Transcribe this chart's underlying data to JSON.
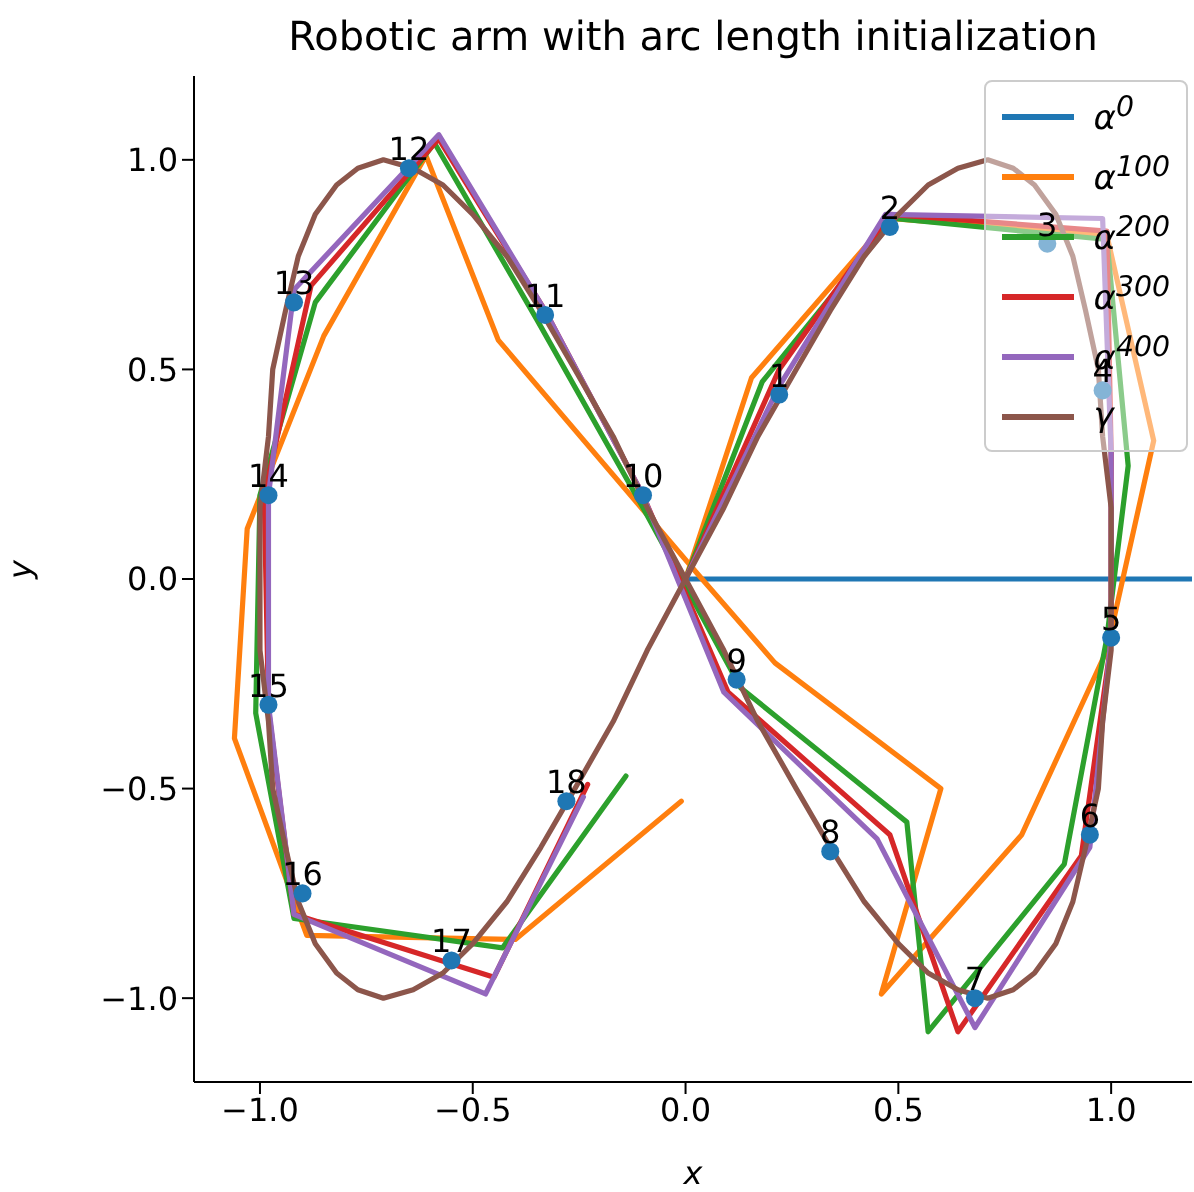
{
  "chart_data": {
    "type": "line",
    "title": "Robotic arm with arc length initialization",
    "xlabel": "x",
    "ylabel": "y",
    "xlim": [
      -1.155,
      1.19
    ],
    "ylim": [
      -1.2,
      1.2
    ],
    "xticks": [
      {
        "value": -1,
        "label": "−1.0"
      },
      {
        "value": -0.5,
        "label": "−0.5"
      },
      {
        "value": 0,
        "label": "0.0"
      },
      {
        "value": 0.5,
        "label": "0.5"
      },
      {
        "value": 1,
        "label": "1.0"
      }
    ],
    "yticks": [
      {
        "value": -1,
        "label": "−1.0"
      },
      {
        "value": -0.5,
        "label": "−0.5"
      },
      {
        "value": 0,
        "label": "0.0"
      },
      {
        "value": 0.5,
        "label": "0.5"
      },
      {
        "value": 1,
        "label": "1.0"
      }
    ],
    "grid": false,
    "legend": "top right",
    "series": [
      {
        "name": "α$^{0}$",
        "color": "#1f77b4",
        "x": [
          0,
          1.19
        ],
        "values": [
          0,
          0
        ]
      },
      {
        "name": "α$^{100}$",
        "color": "#ff7f0e",
        "x": [
          0,
          0.155,
          0.48,
          0.99,
          1.1,
          0.99,
          0.79,
          0.46,
          0.6,
          0.21,
          0.03,
          -0.44,
          -0.61,
          -0.85,
          -1.03,
          -1.06,
          -0.89,
          -0.4,
          -0.01
        ],
        "values": [
          0,
          0.48,
          0.86,
          0.82,
          0.33,
          -0.17,
          -0.61,
          -0.99,
          -0.5,
          -0.2,
          0.01,
          0.57,
          1.01,
          0.58,
          0.12,
          -0.38,
          -0.85,
          -0.86,
          -0.53
        ]
      },
      {
        "name": "α$^{200}$",
        "color": "#2ca02c",
        "x": [
          0,
          0.18,
          0.49,
          0.99,
          1.04,
          0.99,
          0.89,
          0.57,
          0.52,
          0.13,
          -0.1,
          -0.35,
          -0.59,
          -0.87,
          -1.0,
          -1.01,
          -0.92,
          -0.43,
          -0.14
        ],
        "values": [
          0,
          0.47,
          0.86,
          0.81,
          0.27,
          -0.14,
          -0.68,
          -1.08,
          -0.58,
          -0.26,
          0.17,
          0.62,
          1.04,
          0.66,
          0.2,
          -0.32,
          -0.81,
          -0.88,
          -0.47
        ]
      },
      {
        "name": "α$^{300}$",
        "color": "#d62728",
        "x": [
          0,
          0.22,
          0.48,
          0.99,
          1.0,
          1.0,
          0.93,
          0.64,
          0.48,
          0.1,
          -0.1,
          -0.33,
          -0.58,
          -0.88,
          -0.99,
          -0.98,
          -0.92,
          -0.45,
          -0.23
        ],
        "values": [
          0,
          0.5,
          0.87,
          0.83,
          0.3,
          -0.15,
          -0.66,
          -1.08,
          -0.61,
          -0.27,
          0.2,
          0.64,
          1.05,
          0.7,
          0.2,
          -0.31,
          -0.8,
          -0.95,
          -0.49
        ]
      },
      {
        "name": "α$^{400}$",
        "color": "#9467bd",
        "x": [
          0,
          0.22,
          0.47,
          0.98,
          1.0,
          1.0,
          0.95,
          0.68,
          0.45,
          0.09,
          -0.1,
          -0.33,
          -0.58,
          -0.92,
          -0.98,
          -0.98,
          -0.92,
          -0.47,
          -0.24
        ],
        "values": [
          0,
          0.46,
          0.87,
          0.86,
          0.3,
          -0.14,
          -0.64,
          -1.07,
          -0.62,
          -0.27,
          0.2,
          0.64,
          1.06,
          0.69,
          0.2,
          -0.3,
          -0.8,
          -0.99,
          -0.52
        ]
      },
      {
        "name": "γ",
        "color": "#8c564b",
        "x": [
          -0.09,
          0,
          0.09,
          0.17,
          0.26,
          0.34,
          0.42,
          0.5,
          0.57,
          0.64,
          0.71,
          0.77,
          0.82,
          0.87,
          0.91,
          0.94,
          0.97,
          0.98,
          1,
          1,
          1,
          0.98,
          0.97,
          0.94,
          0.91,
          0.87,
          0.82,
          0.77,
          0.71,
          0.64,
          0.57,
          0.5,
          0.42,
          0.34,
          0.26,
          0.17,
          0.09,
          0,
          -0.09,
          -0.17,
          -0.26,
          -0.34,
          -0.42,
          -0.5,
          -0.57,
          -0.64,
          -0.71,
          -0.77,
          -0.82,
          -0.87,
          -0.91,
          -0.94,
          -0.97,
          -0.98,
          -1,
          -1,
          -1,
          -0.98,
          -0.97,
          -0.94,
          -0.91,
          -0.87,
          -0.82,
          -0.77,
          -0.71,
          -0.64,
          -0.57,
          -0.5,
          -0.42,
          -0.34,
          -0.26,
          -0.17,
          -0.09,
          0
        ],
        "values": [
          -0.17,
          0,
          0.17,
          0.34,
          0.5,
          0.64,
          0.77,
          0.87,
          0.94,
          0.98,
          1,
          0.98,
          0.94,
          0.87,
          0.77,
          0.64,
          0.5,
          0.34,
          0.17,
          0,
          -0.17,
          -0.34,
          -0.5,
          -0.64,
          -0.77,
          -0.87,
          -0.94,
          -0.98,
          -1,
          -0.98,
          -0.94,
          -0.87,
          -0.77,
          -0.64,
          -0.5,
          -0.34,
          -0.17,
          0,
          0.17,
          0.34,
          0.5,
          0.64,
          0.77,
          0.87,
          0.94,
          0.98,
          1,
          0.98,
          0.94,
          0.87,
          0.77,
          0.64,
          0.5,
          0.34,
          0.17,
          0,
          -0.17,
          -0.34,
          -0.5,
          -0.64,
          -0.77,
          -0.87,
          -0.94,
          -0.98,
          -1,
          -0.98,
          -0.94,
          -0.87,
          -0.77,
          -0.64,
          -0.5,
          -0.34,
          -0.17,
          0
        ]
      },
      {
        "type": "scatter",
        "marker": "circle",
        "color": "#1f77b4",
        "x": [
          0.22,
          0.48,
          0.85,
          0.98,
          1.0,
          0.95,
          0.68,
          0.34,
          0.12,
          -0.1,
          -0.33,
          -0.65,
          -0.92,
          -0.98,
          -0.98,
          -0.9,
          -0.55,
          -0.28
        ],
        "values": [
          0.44,
          0.84,
          0.8,
          0.45,
          -0.14,
          -0.61,
          -1.0,
          -0.65,
          -0.24,
          0.2,
          0.63,
          0.98,
          0.66,
          0.2,
          -0.3,
          -0.75,
          -0.91,
          -0.53
        ]
      }
    ],
    "annotations": [
      {
        "text": "1",
        "x": 0.22,
        "y": 0.44
      },
      {
        "text": "2",
        "x": 0.48,
        "y": 0.84
      },
      {
        "text": "3",
        "x": 0.85,
        "y": 0.8
      },
      {
        "text": "4",
        "x": 0.98,
        "y": 0.45
      },
      {
        "text": "5",
        "x": 1.0,
        "y": -0.14
      },
      {
        "text": "6",
        "x": 0.95,
        "y": -0.61
      },
      {
        "text": "7",
        "x": 0.68,
        "y": -1.0
      },
      {
        "text": "8",
        "x": 0.34,
        "y": -0.65
      },
      {
        "text": "9",
        "x": 0.12,
        "y": -0.24
      },
      {
        "text": "10",
        "x": -0.1,
        "y": 0.2
      },
      {
        "text": "11",
        "x": -0.33,
        "y": 0.63
      },
      {
        "text": "12",
        "x": -0.65,
        "y": 0.98
      },
      {
        "text": "13",
        "x": -0.92,
        "y": 0.66
      },
      {
        "text": "14",
        "x": -0.98,
        "y": 0.2
      },
      {
        "text": "15",
        "x": -0.98,
        "y": -0.3
      },
      {
        "text": "16",
        "x": -0.9,
        "y": -0.75
      },
      {
        "text": "17",
        "x": -0.55,
        "y": -0.91
      },
      {
        "text": "18",
        "x": -0.28,
        "y": -0.53
      }
    ]
  }
}
